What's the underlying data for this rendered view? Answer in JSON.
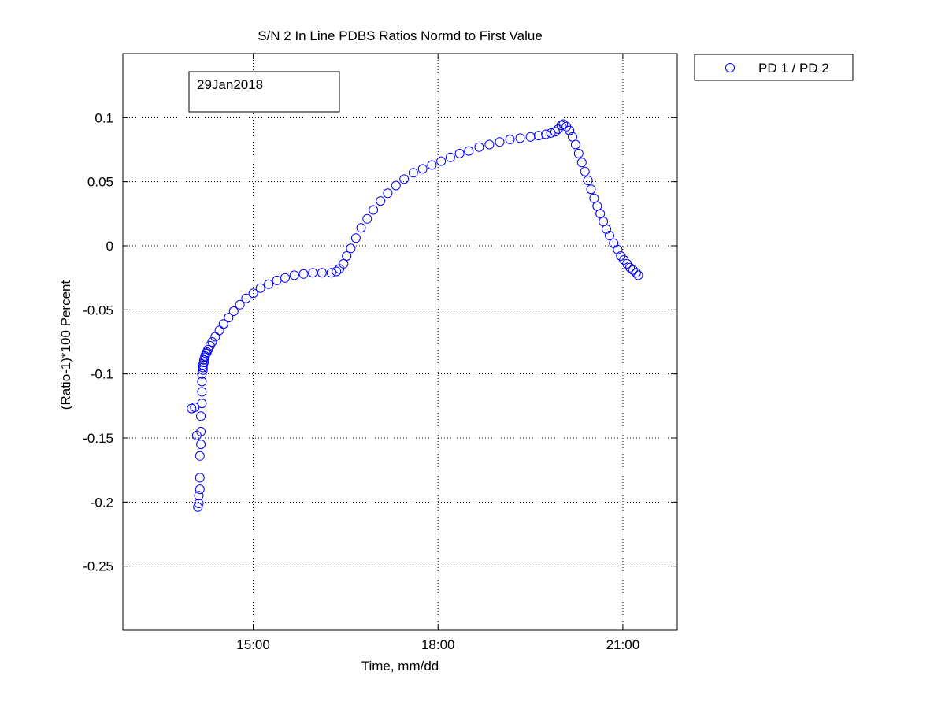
{
  "chart_data": {
    "type": "scatter",
    "title": "S/N 2 In Line PDBS Ratios Normd to First Value",
    "xlabel": "Time, mm/dd",
    "ylabel": "(Ratio-1)*100 Percent",
    "annotation": "29Jan2018",
    "grid": true,
    "legend_placement": "outside-top-right",
    "marker": "circle",
    "color": "#0000ff",
    "xlim": [
      "12:53",
      "21:53"
    ],
    "ylim": [
      -0.3,
      0.15
    ],
    "x_ticks": [
      "15:00",
      "18:00",
      "21:00"
    ],
    "y_ticks": [
      "0.1",
      "0.05",
      "0",
      "-0.05",
      "-0.1",
      "-0.15",
      "-0.2",
      "-0.25"
    ],
    "series": [
      {
        "name": "PD 1 / PD 2",
        "x": [
          "14:00",
          "14:03",
          "14:05",
          "14:06",
          "14:07",
          "14:07",
          "14:08",
          "14:08",
          "14:08",
          "14:09",
          "14:09",
          "14:09",
          "14:10",
          "14:10",
          "14:10",
          "14:10",
          "14:11",
          "14:11",
          "14:11",
          "14:12",
          "14:12",
          "14:13",
          "14:13",
          "14:14",
          "14:15",
          "14:16",
          "14:18",
          "14:20",
          "14:23",
          "14:27",
          "14:31",
          "14:36",
          "14:41",
          "14:47",
          "14:53",
          "15:00",
          "15:07",
          "15:15",
          "15:23",
          "15:31",
          "15:40",
          "15:49",
          "15:58",
          "16:07",
          "16:16",
          "16:21",
          "16:24",
          "16:28",
          "16:31",
          "16:35",
          "16:40",
          "16:45",
          "16:51",
          "16:57",
          "17:04",
          "17:11",
          "17:19",
          "17:27",
          "17:36",
          "17:45",
          "17:54",
          "18:03",
          "18:12",
          "18:21",
          "18:30",
          "18:40",
          "18:50",
          "19:00",
          "19:10",
          "19:20",
          "19:30",
          "19:38",
          "19:45",
          "19:50",
          "19:54",
          "19:57",
          "20:00",
          "20:02",
          "20:05",
          "20:08",
          "20:11",
          "20:14",
          "20:17",
          "20:20",
          "20:23",
          "20:26",
          "20:29",
          "20:32",
          "20:35",
          "20:38",
          "20:41",
          "20:44",
          "20:47",
          "20:51",
          "20:55",
          "20:58",
          "21:01",
          "21:04",
          "21:07",
          "21:10",
          "21:13",
          "21:15"
        ],
        "y": [
          -0.127,
          -0.126,
          -0.148,
          -0.204,
          -0.201,
          -0.195,
          -0.19,
          -0.181,
          -0.164,
          -0.155,
          -0.145,
          -0.133,
          -0.123,
          -0.114,
          -0.106,
          -0.1,
          -0.097,
          -0.095,
          -0.093,
          -0.091,
          -0.089,
          -0.087,
          -0.086,
          -0.084,
          -0.083,
          -0.081,
          -0.078,
          -0.075,
          -0.071,
          -0.066,
          -0.061,
          -0.056,
          -0.051,
          -0.046,
          -0.041,
          -0.037,
          -0.033,
          -0.03,
          -0.027,
          -0.025,
          -0.023,
          -0.022,
          -0.021,
          -0.021,
          -0.021,
          -0.02,
          -0.018,
          -0.014,
          -0.008,
          -0.002,
          0.006,
          0.014,
          0.021,
          0.028,
          0.035,
          0.041,
          0.047,
          0.052,
          0.057,
          0.06,
          0.063,
          0.066,
          0.069,
          0.072,
          0.074,
          0.077,
          0.079,
          0.081,
          0.083,
          0.084,
          0.085,
          0.086,
          0.087,
          0.088,
          0.089,
          0.091,
          0.094,
          0.095,
          0.093,
          0.09,
          0.085,
          0.079,
          0.072,
          0.065,
          0.058,
          0.051,
          0.044,
          0.037,
          0.031,
          0.025,
          0.019,
          0.013,
          0.008,
          0.002,
          -0.003,
          -0.008,
          -0.011,
          -0.014,
          -0.017,
          -0.019,
          -0.021,
          -0.023
        ]
      }
    ]
  }
}
